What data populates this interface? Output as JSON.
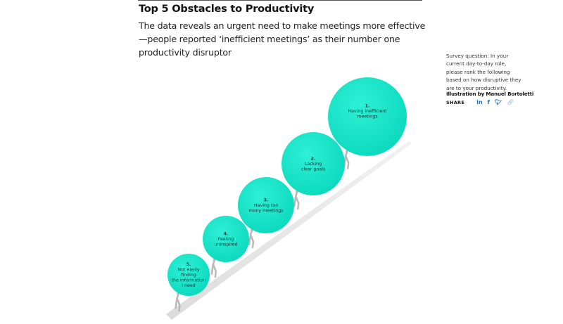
{
  "title": "Top 5 Obstacles to Productivity",
  "subtitle": "The data reveals an urgent need to make meetings more effective—people reported ‘inefficient meetings’ as their number one productivity disruptor",
  "sidebar": {
    "survey_question": "Survey question: In your current day-to-day role, please rank the following based on how disruptive they are to your productivity.",
    "credit": "Illustration by Manuel Bortoletti",
    "share_label": "SHARE",
    "share_icons": [
      "linkedin-icon",
      "facebook-icon",
      "twitter-icon",
      "link-icon"
    ]
  },
  "colors": {
    "circle": "#10e3c8",
    "slope": "#e8e8e8",
    "figure": "#b8b8b8",
    "share": "#1a73c8"
  },
  "obstacles": [
    {
      "rank": "1.",
      "lines": [
        "Having inefficient",
        "meetings"
      ]
    },
    {
      "rank": "2.",
      "lines": [
        "Lacking",
        "clear goals"
      ]
    },
    {
      "rank": "3.",
      "lines": [
        "Having too",
        "many meetings"
      ]
    },
    {
      "rank": "4.",
      "lines": [
        "Feeling",
        "uninspired"
      ]
    },
    {
      "rank": "5.",
      "lines": [
        "Not easily",
        "finding",
        "the information",
        "I need"
      ]
    }
  ]
}
